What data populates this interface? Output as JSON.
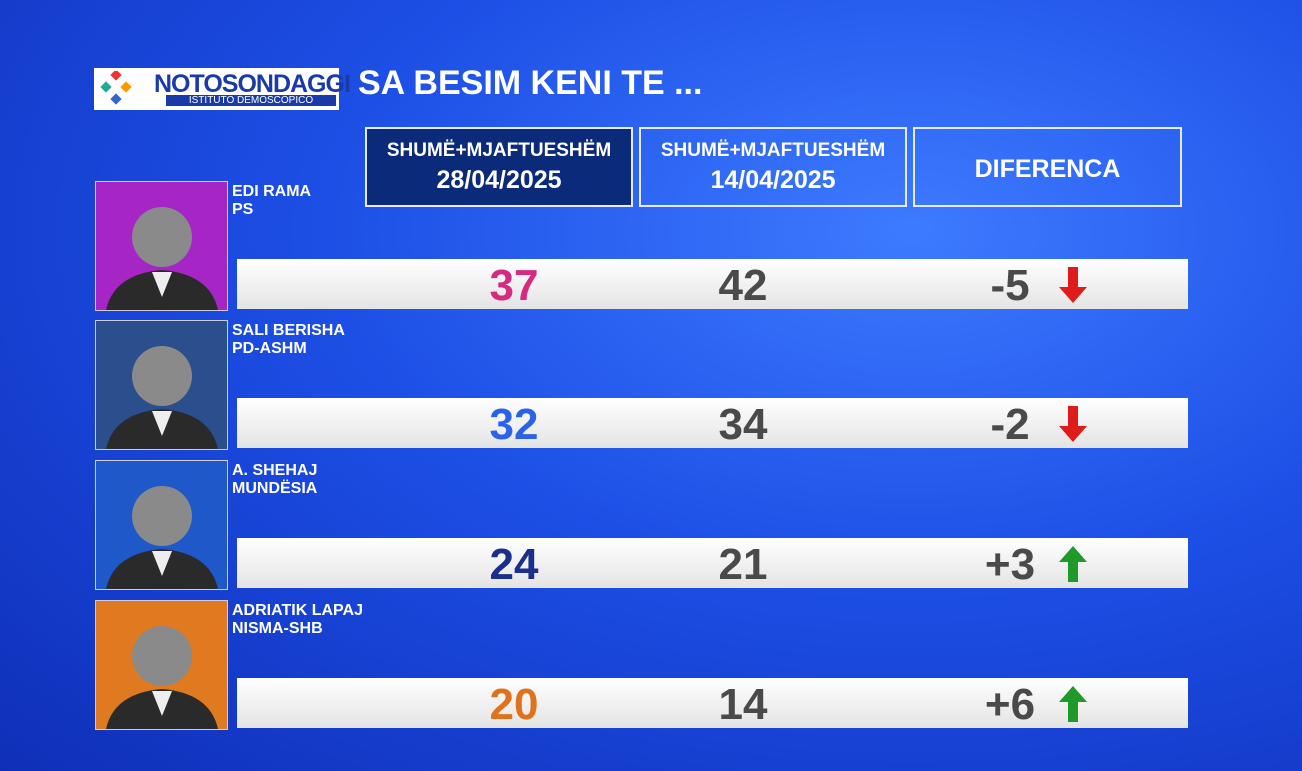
{
  "logo": {
    "name": "NOTOSONDAGGI",
    "tagline": "ISTITUTO DEMOSCOPICO"
  },
  "title": "SA BESIM KENI TE ...",
  "headers": [
    {
      "line1": "SHUMË+MJAFTUESHËM",
      "line2": "28/04/2025"
    },
    {
      "line1": "SHUMË+MJAFTUESHËM",
      "line2": "14/04/2025"
    },
    {
      "line1": "DIFERENCA"
    }
  ],
  "rows": [
    {
      "name": "EDI RAMA",
      "party": "PS",
      "current": 37,
      "previous": 42,
      "difference": "-5",
      "color": "#d6297f",
      "photo_bg": "#a526c4"
    },
    {
      "name": "SALI BERISHA",
      "party": "PD-ASHM",
      "current": 32,
      "previous": 34,
      "difference": "-2",
      "color": "#2a63e8",
      "photo_bg": "#2b4e8c"
    },
    {
      "name": "A. SHEHAJ",
      "party": "MUNDËSIA",
      "current": 24,
      "previous": 21,
      "difference": "+3",
      "color": "#1a2f8a",
      "photo_bg": "#1f58c8"
    },
    {
      "name": "ADRIATIK LAPAJ",
      "party": "NISMA-SHB",
      "current": 20,
      "previous": 14,
      "difference": "+6",
      "color": "#e0721c",
      "photo_bg": "#e07a20"
    }
  ]
}
